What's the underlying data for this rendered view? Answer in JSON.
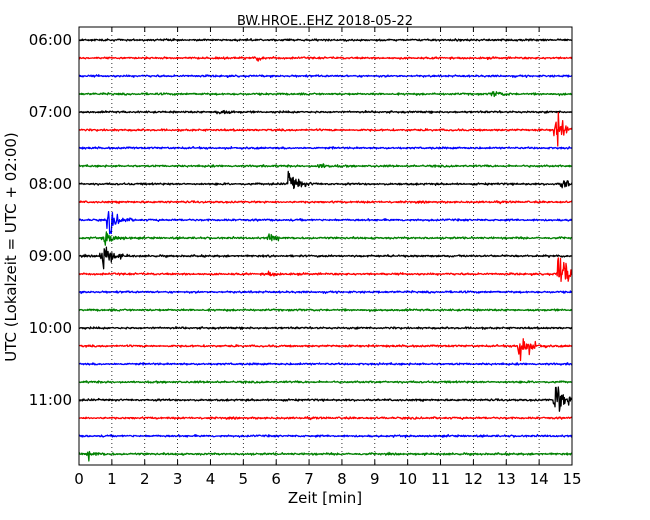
{
  "chart_data": {
    "type": "line",
    "title": "BW.HROE..EHZ 2018-05-22",
    "xlabel": "Zeit  [min]",
    "ylabel": "UTC (Lokalzeit = UTC + 02:00)",
    "xlim": [
      0,
      15
    ],
    "x_ticks": [
      "0",
      "1",
      "2",
      "3",
      "4",
      "5",
      "6",
      "7",
      "8",
      "9",
      "10",
      "11",
      "12",
      "13",
      "14",
      "15"
    ],
    "y_ticks": [
      "06:00",
      "07:00",
      "08:00",
      "09:00",
      "10:00",
      "11:00"
    ],
    "grid": "vertical dotted",
    "trace_interval_min": 15,
    "trace_colors": [
      "#000000",
      "#ff0000",
      "#0000ff",
      "#008000"
    ],
    "traces": [
      {
        "start": "06:00",
        "color": "#000000"
      },
      {
        "start": "06:15",
        "color": "#ff0000"
      },
      {
        "start": "06:30",
        "color": "#0000ff"
      },
      {
        "start": "06:45",
        "color": "#008000"
      },
      {
        "start": "07:00",
        "color": "#000000"
      },
      {
        "start": "07:15",
        "color": "#ff0000"
      },
      {
        "start": "07:30",
        "color": "#0000ff"
      },
      {
        "start": "07:45",
        "color": "#008000"
      },
      {
        "start": "08:00",
        "color": "#000000"
      },
      {
        "start": "08:15",
        "color": "#ff0000"
      },
      {
        "start": "08:30",
        "color": "#0000ff"
      },
      {
        "start": "08:45",
        "color": "#008000"
      },
      {
        "start": "09:00",
        "color": "#000000"
      },
      {
        "start": "09:15",
        "color": "#ff0000"
      },
      {
        "start": "09:30",
        "color": "#0000ff"
      },
      {
        "start": "09:45",
        "color": "#008000"
      },
      {
        "start": "10:00",
        "color": "#000000"
      },
      {
        "start": "10:15",
        "color": "#ff0000"
      },
      {
        "start": "10:30",
        "color": "#0000ff"
      },
      {
        "start": "10:45",
        "color": "#008000"
      },
      {
        "start": "11:00",
        "color": "#000000"
      },
      {
        "start": "11:15",
        "color": "#ff0000"
      },
      {
        "start": "11:30",
        "color": "#0000ff"
      },
      {
        "start": "11:45",
        "color": "#008000"
      }
    ],
    "events": [
      {
        "start": "06:15",
        "minute": 5.4,
        "amplitude": 0.3
      },
      {
        "start": "06:45",
        "minute": 12.6,
        "amplitude": 0.4
      },
      {
        "start": "07:00",
        "minute": 4.2,
        "amplitude": 0.5
      },
      {
        "start": "07:15",
        "minute": 14.5,
        "amplitude": 2.6
      },
      {
        "start": "07:45",
        "minute": 7.3,
        "amplitude": 0.4
      },
      {
        "start": "08:00",
        "minute": 6.4,
        "amplitude": 1.8
      },
      {
        "start": "08:00",
        "minute": 14.7,
        "amplitude": 0.8
      },
      {
        "start": "08:30",
        "minute": 0.9,
        "amplitude": 2.0
      },
      {
        "start": "08:45",
        "minute": 0.8,
        "amplitude": 1.2
      },
      {
        "start": "08:45",
        "minute": 5.8,
        "amplitude": 0.5
      },
      {
        "start": "09:00",
        "minute": 0.7,
        "amplitude": 2.4
      },
      {
        "start": "09:15",
        "minute": 14.6,
        "amplitude": 3.5
      },
      {
        "start": "09:15",
        "minute": 5.7,
        "amplitude": 0.4
      },
      {
        "start": "10:15",
        "minute": 13.4,
        "amplitude": 3.0
      },
      {
        "start": "11:00",
        "minute": 14.5,
        "amplitude": 2.8
      },
      {
        "start": "11:45",
        "minute": 0.3,
        "amplitude": 0.6
      }
    ]
  }
}
